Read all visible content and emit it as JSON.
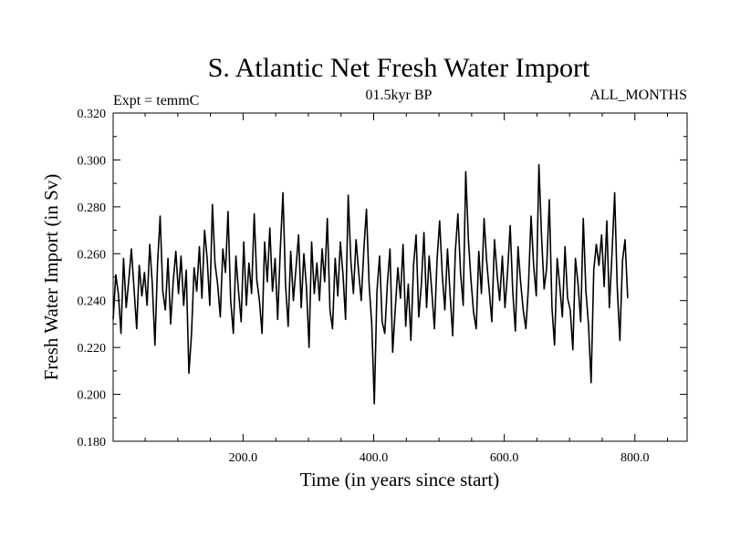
{
  "chart_data": {
    "type": "line",
    "title": "S. Atlantic Net Fresh Water Import",
    "subtitle": "01.5kyr BP",
    "header_left": "Expt = temmC",
    "header_right": "ALL_MONTHS",
    "xlabel": "Time (in years since start)",
    "ylabel": "Fresh Water Import (in Sv)",
    "xlim": [
      1,
      880
    ],
    "ylim": [
      0.18,
      0.32
    ],
    "x_ticks": [
      200,
      400,
      600,
      800
    ],
    "x_tick_labels": [
      "200.0",
      "400.0",
      "600.0",
      "800.0"
    ],
    "y_ticks": [
      0.18,
      0.2,
      0.22,
      0.24,
      0.26,
      0.28,
      0.3,
      0.32
    ],
    "y_tick_labels": [
      "0.180",
      "0.200",
      "0.220",
      "0.240",
      "0.260",
      "0.280",
      "0.300",
      "0.320"
    ],
    "series": [
      {
        "name": "net fresh water import",
        "x_start": 1,
        "x_step": 4,
        "values": [
          0.232,
          0.251,
          0.243,
          0.226,
          0.258,
          0.237,
          0.249,
          0.262,
          0.245,
          0.228,
          0.255,
          0.242,
          0.252,
          0.238,
          0.264,
          0.247,
          0.221,
          0.256,
          0.276,
          0.244,
          0.236,
          0.258,
          0.23,
          0.248,
          0.261,
          0.243,
          0.259,
          0.238,
          0.253,
          0.209,
          0.226,
          0.254,
          0.244,
          0.263,
          0.241,
          0.27,
          0.258,
          0.238,
          0.281,
          0.256,
          0.247,
          0.233,
          0.262,
          0.252,
          0.278,
          0.24,
          0.226,
          0.259,
          0.244,
          0.231,
          0.265,
          0.238,
          0.256,
          0.243,
          0.277,
          0.249,
          0.24,
          0.226,
          0.265,
          0.248,
          0.271,
          0.244,
          0.258,
          0.232,
          0.262,
          0.286,
          0.247,
          0.229,
          0.261,
          0.24,
          0.254,
          0.268,
          0.237,
          0.26,
          0.246,
          0.22,
          0.265,
          0.243,
          0.256,
          0.24,
          0.262,
          0.248,
          0.275,
          0.236,
          0.228,
          0.258,
          0.242,
          0.265,
          0.251,
          0.232,
          0.285,
          0.257,
          0.243,
          0.266,
          0.252,
          0.24,
          0.262,
          0.279,
          0.247,
          0.23,
          0.196,
          0.244,
          0.259,
          0.231,
          0.226,
          0.247,
          0.262,
          0.218,
          0.236,
          0.254,
          0.241,
          0.264,
          0.229,
          0.247,
          0.223,
          0.255,
          0.268,
          0.233,
          0.247,
          0.269,
          0.237,
          0.259,
          0.244,
          0.228,
          0.257,
          0.274,
          0.251,
          0.236,
          0.262,
          0.243,
          0.225,
          0.261,
          0.277,
          0.252,
          0.238,
          0.295,
          0.266,
          0.249,
          0.235,
          0.228,
          0.261,
          0.243,
          0.275,
          0.257,
          0.244,
          0.231,
          0.266,
          0.251,
          0.24,
          0.259,
          0.237,
          0.252,
          0.272,
          0.244,
          0.227,
          0.263,
          0.248,
          0.236,
          0.228,
          0.246,
          0.276,
          0.255,
          0.242,
          0.298,
          0.268,
          0.245,
          0.254,
          0.283,
          0.237,
          0.221,
          0.258,
          0.246,
          0.233,
          0.263,
          0.241,
          0.236,
          0.219,
          0.258,
          0.247,
          0.231,
          0.275,
          0.244,
          0.23,
          0.205,
          0.253,
          0.264,
          0.255,
          0.268,
          0.246,
          0.274,
          0.237,
          0.26,
          0.286,
          0.246,
          0.223,
          0.257,
          0.266,
          0.241
        ]
      }
    ]
  }
}
